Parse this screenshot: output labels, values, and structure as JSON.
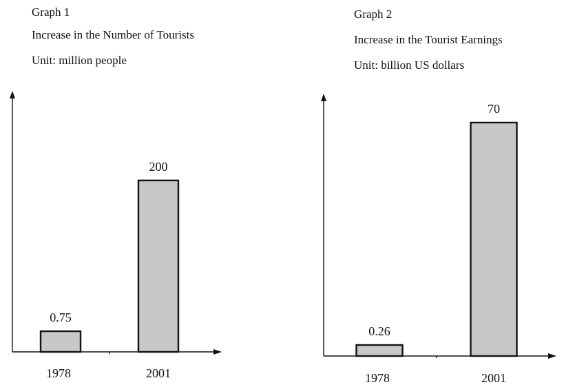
{
  "chart_data": [
    {
      "type": "bar",
      "graph_name": "Graph 1",
      "title": "Increase in the Number of Tourists",
      "unit": "Unit: million people",
      "categories": [
        "1978",
        "2001"
      ],
      "values": [
        0.75,
        200
      ],
      "value_labels": [
        "0.75",
        "200"
      ],
      "grid": false,
      "colors": {
        "bar_fill": "#c8c8c8",
        "bar_stroke": "#111111"
      }
    },
    {
      "type": "bar",
      "graph_name": "Graph 2",
      "title": "Increase in the Tourist Earnings",
      "unit": "Unit: billion US dollars",
      "categories": [
        "1978",
        "2001"
      ],
      "values": [
        0.26,
        70
      ],
      "value_labels": [
        "0.26",
        "70"
      ],
      "grid": false,
      "colors": {
        "bar_fill": "#c8c8c8",
        "bar_stroke": "#111111"
      }
    }
  ]
}
